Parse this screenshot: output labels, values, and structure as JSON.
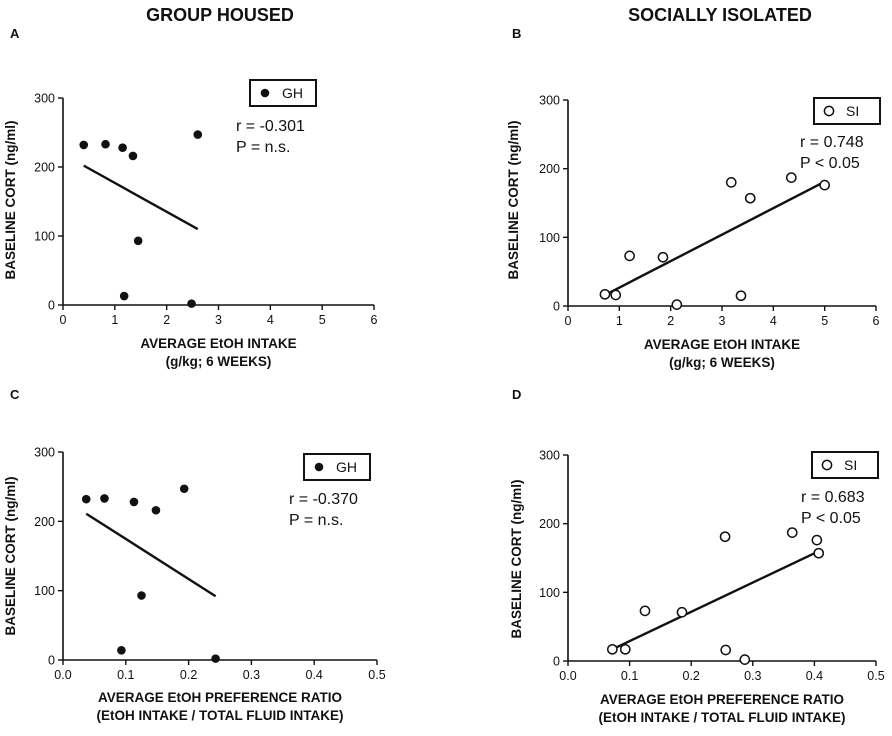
{
  "figure": {
    "group_title": "GROUP HOUSED",
    "isolated_title": "SOCIALLY ISOLATED"
  },
  "chart_data": [
    {
      "panel": "A",
      "type": "scatter",
      "legend": "GH",
      "marker": "filled",
      "stats": [
        "r = -0.301",
        "P = n.s."
      ],
      "ylabel": "BASELINE CORT  (ng/ml)",
      "xlabel": [
        "AVERAGE EtOH INTAKE",
        "(g/kg; 6 WEEKS)"
      ],
      "xlim": [
        0,
        6
      ],
      "ylim": [
        0,
        300
      ],
      "xticks": [
        0,
        1,
        2,
        3,
        4,
        5,
        6
      ],
      "xticklabels": [
        "0",
        "1",
        "2",
        "3",
        "4",
        "5",
        "6"
      ],
      "yticks": [
        0,
        100,
        200,
        300
      ],
      "yticklabels": [
        "0",
        "100",
        "200",
        "300"
      ],
      "points": [
        {
          "x": 0.4,
          "y": 232
        },
        {
          "x": 0.82,
          "y": 233
        },
        {
          "x": 1.15,
          "y": 228
        },
        {
          "x": 1.35,
          "y": 216
        },
        {
          "x": 1.45,
          "y": 93
        },
        {
          "x": 1.18,
          "y": 13
        },
        {
          "x": 2.48,
          "y": 2
        },
        {
          "x": 2.6,
          "y": 247
        }
      ],
      "regression": {
        "x1": 0.4,
        "y1": 202,
        "x2": 2.6,
        "y2": 110
      }
    },
    {
      "panel": "B",
      "type": "scatter",
      "legend": "SI",
      "marker": "open",
      "stats": [
        "r = 0.748",
        "P < 0.05"
      ],
      "ylabel": "BASELINE CORT  (ng/ml)",
      "xlabel": [
        "AVERAGE EtOH INTAKE",
        "(g/kg; 6 WEEKS)"
      ],
      "xlim": [
        0,
        6
      ],
      "ylim": [
        0,
        300
      ],
      "xticks": [
        0,
        1,
        2,
        3,
        4,
        5,
        6
      ],
      "xticklabels": [
        "0",
        "1",
        "2",
        "3",
        "4",
        "5",
        "6"
      ],
      "yticks": [
        0,
        100,
        200,
        300
      ],
      "yticklabels": [
        "0",
        "100",
        "200",
        "300"
      ],
      "points": [
        {
          "x": 0.72,
          "y": 17
        },
        {
          "x": 0.93,
          "y": 16
        },
        {
          "x": 1.2,
          "y": 73
        },
        {
          "x": 1.85,
          "y": 71
        },
        {
          "x": 2.12,
          "y": 2
        },
        {
          "x": 3.18,
          "y": 180
        },
        {
          "x": 3.37,
          "y": 15
        },
        {
          "x": 3.55,
          "y": 157
        },
        {
          "x": 4.35,
          "y": 187
        },
        {
          "x": 5.0,
          "y": 176
        }
      ],
      "regression": {
        "x1": 0.72,
        "y1": 16,
        "x2": 5.0,
        "y2": 181
      }
    },
    {
      "panel": "C",
      "type": "scatter",
      "legend": "GH",
      "marker": "filled",
      "stats": [
        "r = -0.370",
        "P = n.s."
      ],
      "ylabel": "BASELINE CORT  (ng/ml)",
      "xlabel": [
        "AVERAGE EtOH PREFERENCE RATIO",
        "(EtOH INTAKE / TOTAL FLUID INTAKE)"
      ],
      "xlim": [
        0,
        0.5
      ],
      "ylim": [
        0,
        300
      ],
      "xticks": [
        0,
        0.1,
        0.2,
        0.3,
        0.4,
        0.5
      ],
      "xticklabels": [
        "0.0",
        "0.1",
        "0.2",
        "0.3",
        "0.4",
        "0.5"
      ],
      "yticks": [
        0,
        100,
        200,
        300
      ],
      "yticklabels": [
        "0",
        "100",
        "200",
        "300"
      ],
      "points": [
        {
          "x": 0.037,
          "y": 232
        },
        {
          "x": 0.066,
          "y": 233
        },
        {
          "x": 0.113,
          "y": 228
        },
        {
          "x": 0.148,
          "y": 216
        },
        {
          "x": 0.125,
          "y": 93
        },
        {
          "x": 0.093,
          "y": 14
        },
        {
          "x": 0.193,
          "y": 247
        },
        {
          "x": 0.243,
          "y": 2
        }
      ],
      "regression": {
        "x1": 0.037,
        "y1": 211,
        "x2": 0.243,
        "y2": 92
      }
    },
    {
      "panel": "D",
      "type": "scatter",
      "legend": "SI",
      "marker": "open",
      "stats": [
        "r = 0.683",
        "P < 0.05"
      ],
      "ylabel": "BASELINE CORT  (ng/ml)",
      "xlabel": [
        "AVERAGE EtOH PREFERENCE RATIO",
        "(EtOH INTAKE / TOTAL FLUID INTAKE)"
      ],
      "xlim": [
        0,
        0.5
      ],
      "ylim": [
        0,
        300
      ],
      "xticks": [
        0,
        0.1,
        0.2,
        0.3,
        0.4,
        0.5
      ],
      "xticklabels": [
        "0.0",
        "0.1",
        "0.2",
        "0.3",
        "0.4",
        "0.5"
      ],
      "yticks": [
        0,
        100,
        200,
        300
      ],
      "yticklabels": [
        "0",
        "100",
        "200",
        "300"
      ],
      "points": [
        {
          "x": 0.072,
          "y": 17
        },
        {
          "x": 0.093,
          "y": 17
        },
        {
          "x": 0.125,
          "y": 73
        },
        {
          "x": 0.185,
          "y": 71
        },
        {
          "x": 0.255,
          "y": 181
        },
        {
          "x": 0.256,
          "y": 16
        },
        {
          "x": 0.287,
          "y": 2
        },
        {
          "x": 0.364,
          "y": 187
        },
        {
          "x": 0.404,
          "y": 176
        },
        {
          "x": 0.407,
          "y": 157
        }
      ],
      "regression": {
        "x1": 0.072,
        "y1": 17,
        "x2": 0.405,
        "y2": 159
      }
    }
  ]
}
